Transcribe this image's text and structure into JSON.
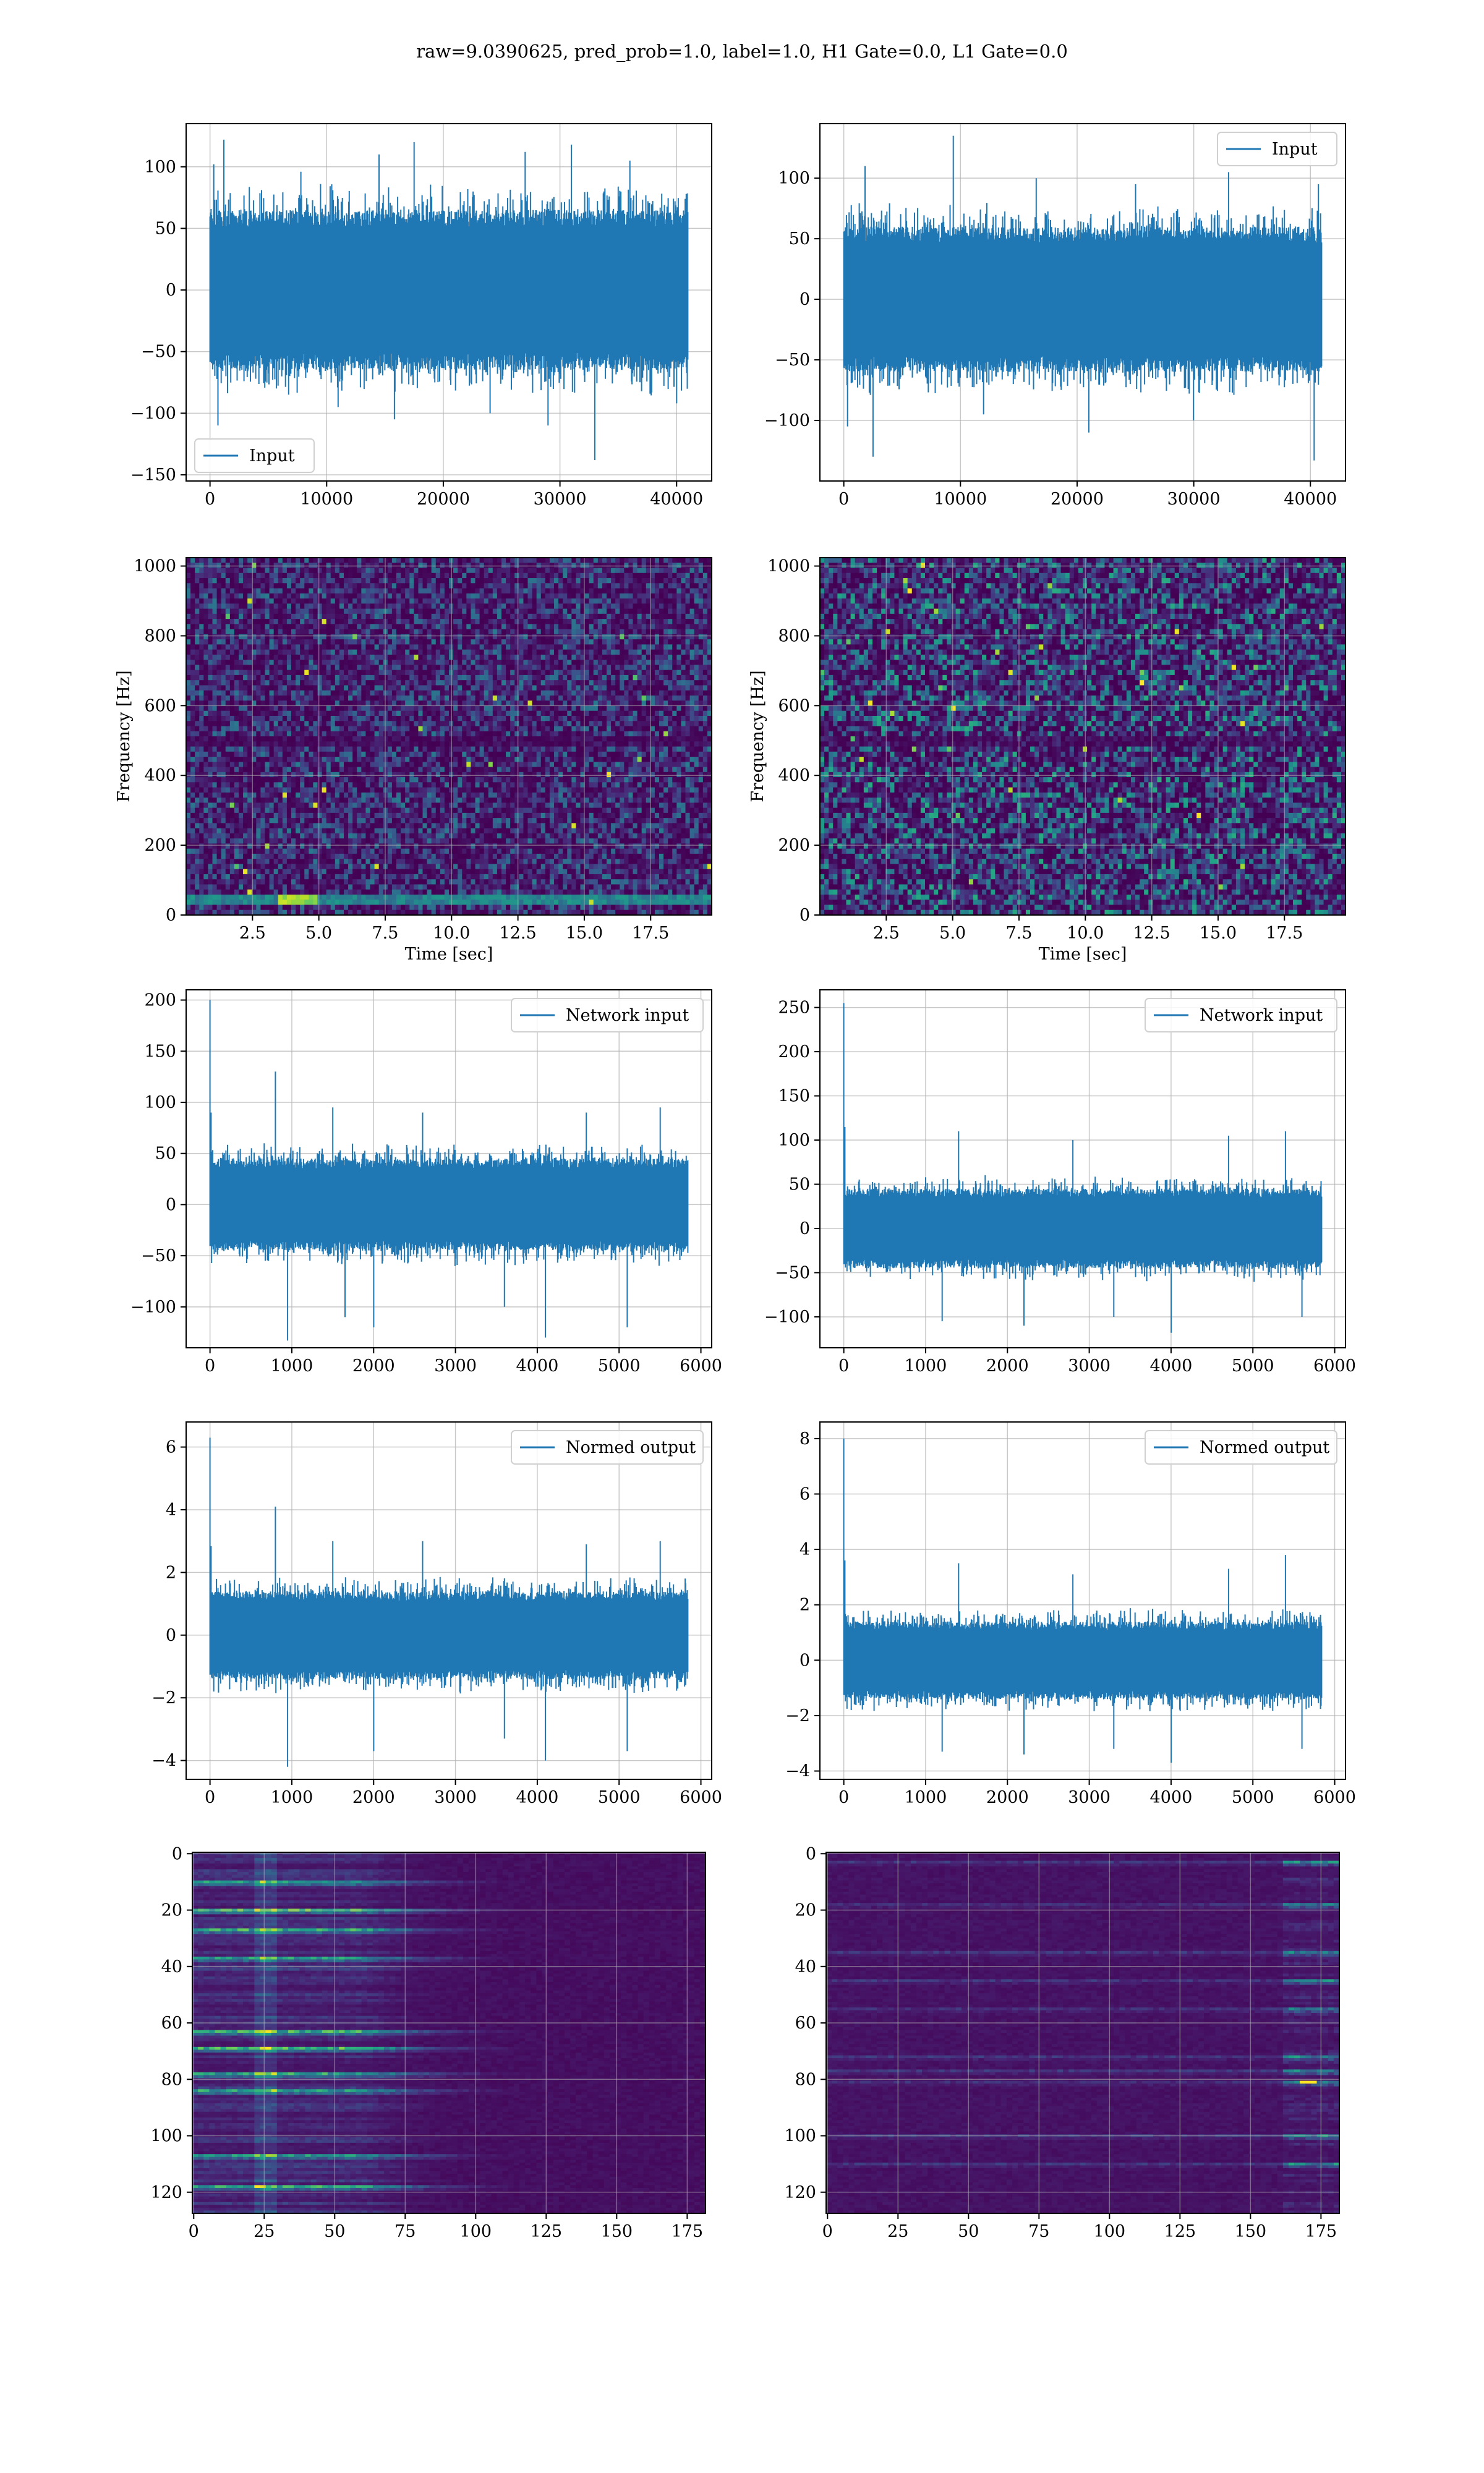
{
  "figure": {
    "suptitle": "raw=9.0390625, pred_prob=1.0, label=1.0, H1 Gate=0.0, L1 Gate=0.0"
  },
  "colors": {
    "line": "#1f77b4",
    "grid": "#b0b0b0",
    "viridis": [
      "#440154",
      "#482878",
      "#3e4a89",
      "#31688e",
      "#26828e",
      "#1f9e89",
      "#35b779",
      "#6ece58",
      "#b5de2b",
      "#fde725"
    ]
  },
  "chart_data": [
    {
      "id": "h1-input",
      "type": "line",
      "series": [
        {
          "name": "Input",
          "x_range": [
            0,
            40960
          ],
          "typical_amplitude": 65,
          "min": -138,
          "max": 125,
          "spikes": [
            [
              300,
              102
            ],
            [
              700,
              -110
            ],
            [
              1200,
              122
            ],
            [
              7800,
              96
            ],
            [
              11000,
              -95
            ],
            [
              14500,
              110
            ],
            [
              15800,
              -105
            ],
            [
              17500,
              120
            ],
            [
              24000,
              -100
            ],
            [
              27000,
              112
            ],
            [
              29000,
              -110
            ],
            [
              31000,
              118
            ],
            [
              33000,
              -138
            ],
            [
              36000,
              105
            ],
            [
              40000,
              -92
            ]
          ]
        }
      ],
      "xlim": [
        -2048,
        43008
      ],
      "ylim": [
        -155,
        135
      ],
      "xticks": [
        0,
        10000,
        20000,
        30000,
        40000
      ],
      "xtick_labels": [
        "0",
        "10000",
        "20000",
        "30000",
        "40000"
      ],
      "yticks": [
        -150,
        -100,
        -50,
        0,
        50,
        100
      ],
      "ytick_labels": [
        "−150",
        "−100",
        "−50",
        "0",
        "50",
        "100"
      ],
      "legend": "lower-left",
      "grid": true,
      "xlabel": "",
      "ylabel": ""
    },
    {
      "id": "l1-input",
      "type": "line",
      "series": [
        {
          "name": "Input",
          "x_range": [
            0,
            40960
          ],
          "typical_amplitude": 60,
          "min": -133,
          "max": 135,
          "spikes": [
            [
              300,
              -105
            ],
            [
              1800,
              110
            ],
            [
              2500,
              -130
            ],
            [
              9400,
              135
            ],
            [
              12000,
              -95
            ],
            [
              16500,
              100
            ],
            [
              21000,
              -110
            ],
            [
              25000,
              95
            ],
            [
              30000,
              -100
            ],
            [
              33000,
              105
            ],
            [
              40300,
              -133
            ],
            [
              40700,
              95
            ]
          ]
        }
      ],
      "xlim": [
        -2048,
        43008
      ],
      "ylim": [
        -150,
        145
      ],
      "xticks": [
        0,
        10000,
        20000,
        30000,
        40000
      ],
      "xtick_labels": [
        "0",
        "10000",
        "20000",
        "30000",
        "40000"
      ],
      "yticks": [
        -100,
        -50,
        0,
        50,
        100
      ],
      "ytick_labels": [
        "−100",
        "−50",
        "0",
        "50",
        "100"
      ],
      "legend": "upper-right",
      "grid": true,
      "xlabel": "",
      "ylabel": ""
    },
    {
      "id": "h1-spectrogram",
      "type": "heatmap",
      "xlim": [
        0,
        19.8
      ],
      "ylim": [
        0,
        1024
      ],
      "xticks": [
        2.5,
        5,
        7.5,
        10,
        12.5,
        15,
        17.5
      ],
      "xtick_labels": [
        "2.5",
        "5.0",
        "7.5",
        "10.0",
        "12.5",
        "15.0",
        "17.5"
      ],
      "yticks": [
        0,
        200,
        400,
        600,
        800,
        1000
      ],
      "ytick_labels": [
        "0",
        "200",
        "400",
        "600",
        "800",
        "1000"
      ],
      "xlabel": "Time [sec]",
      "ylabel": "Frequency [Hz]",
      "features": {
        "low_freq_line_hz": 45,
        "bright_segment_sec": [
          3.5,
          5.0
        ],
        "dark_band_hz": 500
      },
      "grid": true
    },
    {
      "id": "l1-spectrogram",
      "type": "heatmap",
      "xlim": [
        0,
        19.8
      ],
      "ylim": [
        0,
        1024
      ],
      "xticks": [
        2.5,
        5,
        7.5,
        10,
        12.5,
        15,
        17.5
      ],
      "xtick_labels": [
        "2.5",
        "5.0",
        "7.5",
        "10.0",
        "12.5",
        "15.0",
        "17.5"
      ],
      "yticks": [
        0,
        200,
        400,
        600,
        800,
        1000
      ],
      "ytick_labels": [
        "0",
        "200",
        "400",
        "600",
        "800",
        "1000"
      ],
      "xlabel": "Time [sec]",
      "ylabel": "Frequency [Hz]",
      "features": {
        "dark_band_hz": 500
      },
      "grid": true
    },
    {
      "id": "h1-network-input",
      "type": "line",
      "series": [
        {
          "name": "Network input",
          "x_range": [
            0,
            5840
          ],
          "typical_amplitude": 45,
          "min": -133,
          "max": 200,
          "initial_spike": 200,
          "spikes": [
            [
              800,
              130
            ],
            [
              950,
              -133
            ],
            [
              1500,
              95
            ],
            [
              1650,
              -110
            ],
            [
              2000,
              -120
            ],
            [
              2600,
              90
            ],
            [
              3600,
              -100
            ],
            [
              4100,
              -130
            ],
            [
              4600,
              90
            ],
            [
              5100,
              -120
            ],
            [
              5500,
              95
            ]
          ]
        }
      ],
      "xlim": [
        -292,
        6132
      ],
      "ylim": [
        -140,
        210
      ],
      "xticks": [
        0,
        1000,
        2000,
        3000,
        4000,
        5000,
        6000
      ],
      "xtick_labels": [
        "0",
        "1000",
        "2000",
        "3000",
        "4000",
        "5000",
        "6000"
      ],
      "yticks": [
        -100,
        -50,
        0,
        50,
        100,
        150,
        200
      ],
      "ytick_labels": [
        "−100",
        "−50",
        "0",
        "50",
        "100",
        "150",
        "200"
      ],
      "legend": "upper-right",
      "grid": true,
      "xlabel": "",
      "ylabel": ""
    },
    {
      "id": "l1-network-input",
      "type": "line",
      "series": [
        {
          "name": "Network input",
          "x_range": [
            0,
            5840
          ],
          "typical_amplitude": 45,
          "min": -118,
          "max": 255,
          "initial_spike": 255,
          "spikes": [
            [
              1200,
              -105
            ],
            [
              1400,
              110
            ],
            [
              2200,
              -110
            ],
            [
              2800,
              100
            ],
            [
              3300,
              -100
            ],
            [
              4000,
              -118
            ],
            [
              4700,
              105
            ],
            [
              5400,
              110
            ],
            [
              5600,
              -100
            ]
          ]
        }
      ],
      "xlim": [
        -292,
        6132
      ],
      "ylim": [
        -135,
        270
      ],
      "xticks": [
        0,
        1000,
        2000,
        3000,
        4000,
        5000,
        6000
      ],
      "xtick_labels": [
        "0",
        "1000",
        "2000",
        "3000",
        "4000",
        "5000",
        "6000"
      ],
      "yticks": [
        -100,
        -50,
        0,
        50,
        100,
        150,
        200,
        250
      ],
      "ytick_labels": [
        "−100",
        "−50",
        "0",
        "50",
        "100",
        "150",
        "200",
        "250"
      ],
      "legend": "upper-right",
      "grid": true,
      "xlabel": "",
      "ylabel": ""
    },
    {
      "id": "h1-normed-output",
      "type": "line",
      "series": [
        {
          "name": "Normed output",
          "x_range": [
            0,
            5840
          ],
          "typical_amplitude": 1.4,
          "min": -4.2,
          "max": 6.3,
          "initial_spike": 6.3,
          "spikes": [
            [
              800,
              4.1
            ],
            [
              950,
              -4.2
            ],
            [
              1500,
              3.0
            ],
            [
              2000,
              -3.7
            ],
            [
              2600,
              3.0
            ],
            [
              3600,
              -3.3
            ],
            [
              4100,
              -4.0
            ],
            [
              4600,
              2.9
            ],
            [
              5100,
              -3.7
            ],
            [
              5500,
              3.0
            ]
          ]
        }
      ],
      "xlim": [
        -292,
        6132
      ],
      "ylim": [
        -4.6,
        6.8
      ],
      "xticks": [
        0,
        1000,
        2000,
        3000,
        4000,
        5000,
        6000
      ],
      "xtick_labels": [
        "0",
        "1000",
        "2000",
        "3000",
        "4000",
        "5000",
        "6000"
      ],
      "yticks": [
        -4,
        -2,
        0,
        2,
        4,
        6
      ],
      "ytick_labels": [
        "−4",
        "−2",
        "0",
        "2",
        "4",
        "6"
      ],
      "legend": "upper-right",
      "grid": true,
      "xlabel": "",
      "ylabel": ""
    },
    {
      "id": "l1-normed-output",
      "type": "line",
      "series": [
        {
          "name": "Normed output",
          "x_range": [
            0,
            5840
          ],
          "typical_amplitude": 1.4,
          "min": -3.7,
          "max": 8.0,
          "initial_spike": 8.0,
          "spikes": [
            [
              1200,
              -3.3
            ],
            [
              1400,
              3.5
            ],
            [
              2200,
              -3.4
            ],
            [
              2800,
              3.1
            ],
            [
              3300,
              -3.2
            ],
            [
              4000,
              -3.7
            ],
            [
              4700,
              3.3
            ],
            [
              5400,
              3.8
            ],
            [
              5600,
              -3.2
            ]
          ]
        }
      ],
      "xlim": [
        -292,
        6132
      ],
      "ylim": [
        -4.3,
        8.6
      ],
      "xticks": [
        0,
        1000,
        2000,
        3000,
        4000,
        5000,
        6000
      ],
      "xtick_labels": [
        "0",
        "1000",
        "2000",
        "3000",
        "4000",
        "5000",
        "6000"
      ],
      "yticks": [
        -4,
        -2,
        0,
        2,
        4,
        6,
        8
      ],
      "ytick_labels": [
        "−4",
        "−2",
        "0",
        "2",
        "4",
        "6",
        "8"
      ],
      "legend": "upper-right",
      "grid": true,
      "xlabel": "",
      "ylabel": ""
    },
    {
      "id": "h1-feature-map",
      "type": "heatmap",
      "xlim": [
        -0.5,
        181.5
      ],
      "ylim": [
        127.5,
        -0.5
      ],
      "n_rows": 128,
      "n_cols": 182,
      "xticks": [
        0,
        25,
        50,
        75,
        100,
        125,
        150,
        175
      ],
      "xtick_labels": [
        "0",
        "25",
        "50",
        "75",
        "100",
        "125",
        "150",
        "175"
      ],
      "yticks": [
        0,
        20,
        40,
        60,
        80,
        100,
        120
      ],
      "ytick_labels": [
        "0",
        "20",
        "40",
        "60",
        "80",
        "100",
        "120"
      ],
      "features": {
        "bright_column": 25,
        "bright_rows": [
          10,
          20,
          27,
          37,
          63,
          69,
          78,
          84,
          107,
          118
        ],
        "decay_after_col": 60
      },
      "grid": true,
      "xlabel": "",
      "ylabel": ""
    },
    {
      "id": "l1-feature-map",
      "type": "heatmap",
      "xlim": [
        -0.5,
        181.5
      ],
      "ylim": [
        127.5,
        -0.5
      ],
      "n_rows": 128,
      "n_cols": 182,
      "xticks": [
        0,
        25,
        50,
        75,
        100,
        125,
        150,
        175
      ],
      "xtick_labels": [
        "0",
        "25",
        "50",
        "75",
        "100",
        "125",
        "150",
        "175"
      ],
      "yticks": [
        0,
        20,
        40,
        60,
        80,
        100,
        120
      ],
      "ytick_labels": [
        "0",
        "20",
        "40",
        "60",
        "80",
        "100",
        "120"
      ],
      "features": {
        "bright_cols_from": 160,
        "bright_rows": [
          3,
          18,
          35,
          45,
          55,
          72,
          77,
          81,
          100,
          110
        ],
        "hot_spot": [
          81,
          170
        ]
      },
      "grid": true,
      "xlabel": "",
      "ylabel": ""
    }
  ]
}
